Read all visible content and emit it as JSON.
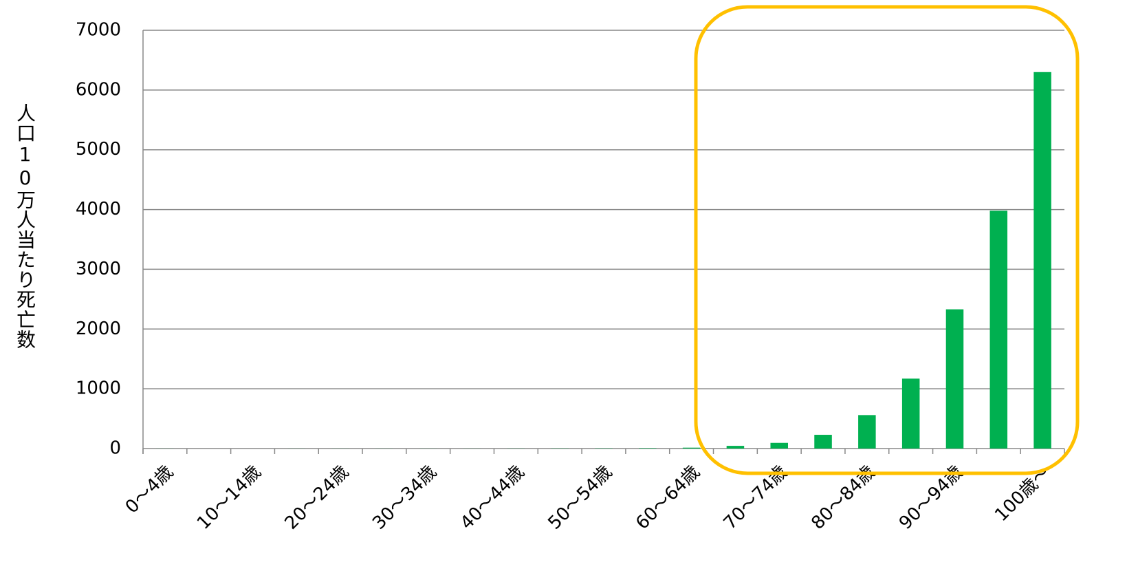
{
  "chart_data": {
    "type": "bar",
    "y_label": "人口10万人当たり死亡数",
    "categories": [
      "0～4歳",
      null,
      "10～14歳",
      null,
      "20～24歳",
      null,
      "30～34歳",
      null,
      "40～44歳",
      null,
      "50～54歳",
      null,
      "60～64歳",
      null,
      "70～74歳",
      null,
      "80～84歳",
      null,
      "90～94歳",
      null,
      "100歳～"
    ],
    "values": [
      1,
      0,
      0,
      1,
      1,
      1,
      1,
      1,
      2,
      3,
      4,
      7,
      15,
      45,
      95,
      230,
      560,
      1170,
      2330,
      3980,
      6300
    ],
    "color": "#00b050",
    "ylim": [
      0,
      7000
    ],
    "yticks": [
      0,
      1000,
      2000,
      3000,
      4000,
      5000,
      6000,
      7000
    ],
    "grid": true
  }
}
